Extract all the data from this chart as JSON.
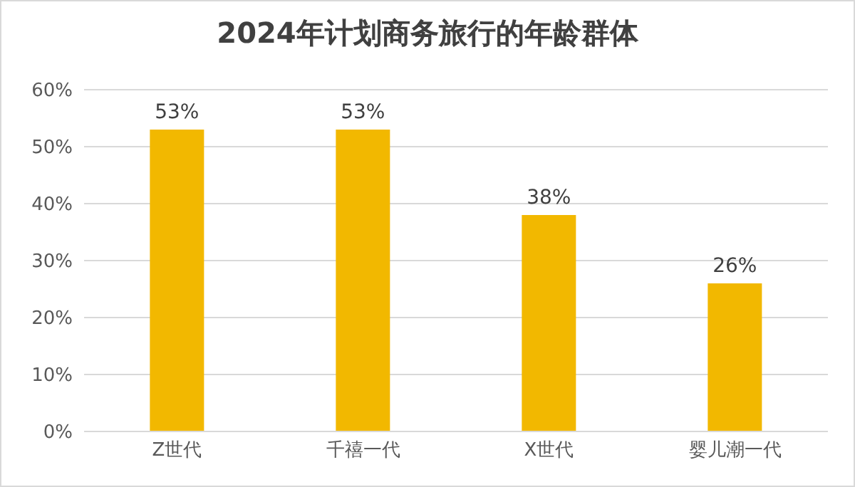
{
  "chart_data": {
    "type": "bar",
    "title": "2024年计划商务旅行的年龄群体",
    "categories": [
      "Z世代",
      "千禧一代",
      "X世代",
      "婴儿潮一代"
    ],
    "values": [
      53,
      53,
      38,
      26
    ],
    "color": "#f2b800",
    "value_labels": [
      "53%",
      "53%",
      "38%",
      "26%"
    ],
    "ylim": [
      0,
      60
    ],
    "yticks": [
      {
        "value": 0,
        "label": "0%"
      },
      {
        "value": 10,
        "label": "10%"
      },
      {
        "value": 20,
        "label": "20%"
      },
      {
        "value": 30,
        "label": "30%"
      },
      {
        "value": 40,
        "label": "40%"
      },
      {
        "value": 50,
        "label": "50%"
      },
      {
        "value": 60,
        "label": "60%"
      }
    ],
    "grid": "y",
    "legend": false
  }
}
